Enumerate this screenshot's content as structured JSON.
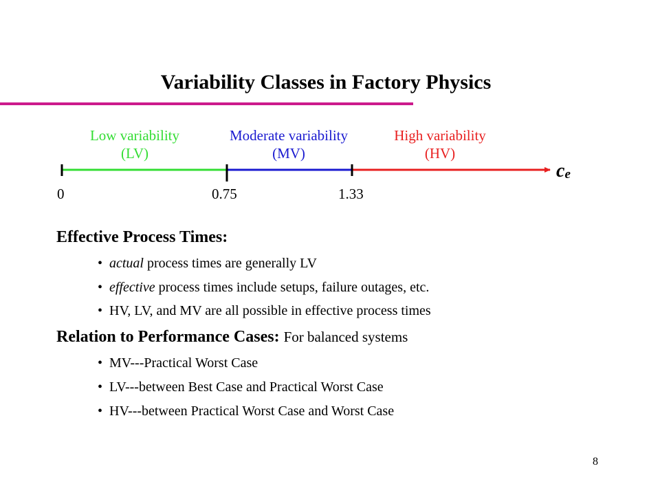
{
  "slide": {
    "title": "Variability Classes in Factory Physics",
    "page_number": "8"
  },
  "scale": {
    "classes": [
      {
        "name": "Low variability",
        "abbr": "(LV)",
        "color": "#33dd33"
      },
      {
        "name": "Moderate variability",
        "abbr": "(MV)",
        "color": "#1a1ad0"
      },
      {
        "name": "High variability",
        "abbr": "(HV)",
        "color": "#e82020"
      }
    ],
    "ticks": [
      "0",
      "0.75",
      "1.33"
    ],
    "variable_symbol": "c",
    "variable_subscript": "e"
  },
  "section1": {
    "heading": "Effective Process Times:",
    "bullets": [
      {
        "emph": "actual",
        "rest": " process times are generally LV"
      },
      {
        "emph": "effective",
        "rest": " process times include setups, failure outages, etc."
      },
      {
        "text": "HV, LV, and MV are all possible in effective process times"
      }
    ]
  },
  "section2": {
    "heading": "Relation to Performance Cases:",
    "note": "For balanced systems",
    "bullets": [
      "MV---Practical Worst Case",
      "LV---between Best Case and Practical Worst Case",
      "HV---between Practical Worst Case and Worst Case"
    ]
  },
  "colors": {
    "title_rule": "#cc1a8c",
    "text": "#000000"
  }
}
